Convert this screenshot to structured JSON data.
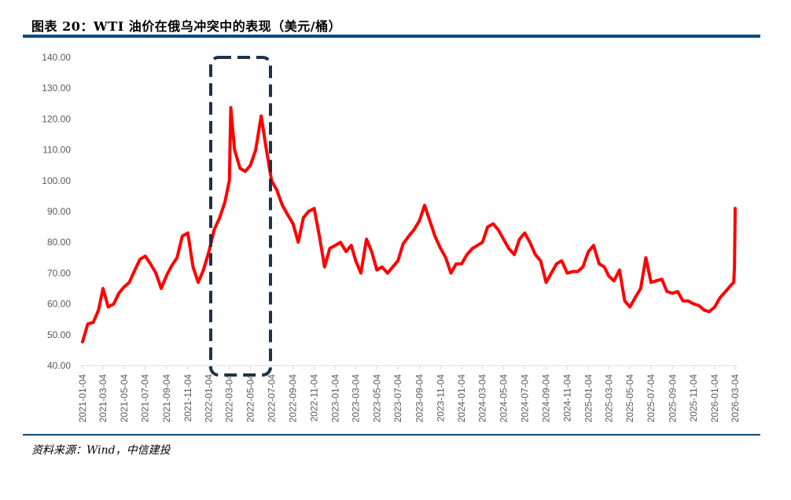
{
  "title": "图表 20：WTI 油价在俄乌冲突中的表现（美元/桶）",
  "source": "资料来源：Wind，中信建投",
  "colors": {
    "line": "#ff0000",
    "rule": "#0d4a7e",
    "highlight_box": "#1f3149",
    "axis": "#d9d9d9"
  },
  "chart_data": {
    "type": "line",
    "title": "",
    "xlabel": "",
    "ylabel": "",
    "ylim": [
      40,
      140
    ],
    "yticks": [
      "40.00",
      "50.00",
      "60.00",
      "70.00",
      "80.00",
      "90.00",
      "100.00",
      "110.00",
      "120.00",
      "130.00",
      "140.00"
    ],
    "xticks": [
      "2021-01-04",
      "2021-03-04",
      "2021-05-04",
      "2021-07-04",
      "2021-09-04",
      "2021-11-04",
      "2022-01-04",
      "2022-03-04",
      "2022-05-04",
      "2022-07-04",
      "2022-09-04",
      "2022-11-04",
      "2023-01-04",
      "2023-03-04",
      "2023-05-04",
      "2023-07-04",
      "2023-09-04",
      "2023-11-04",
      "2024-01-04",
      "2024-03-04",
      "2024-05-04",
      "2024-07-04",
      "2024-09-04",
      "2024-11-04",
      "2025-01-04",
      "2025-03-04",
      "2025-05-04",
      "2025-07-04",
      "2025-09-04",
      "2025-11-04",
      "2026-01-04",
      "2026-03-04"
    ],
    "grid": false,
    "highlight_range": [
      "2022-02-04",
      "2022-06-20"
    ],
    "series": [
      {
        "points": [
          [
            "2021-01-04",
            47.7
          ],
          [
            "2021-01-19",
            53.5
          ],
          [
            "2021-02-04",
            54
          ],
          [
            "2021-02-19",
            58
          ],
          [
            "2021-03-04",
            65
          ],
          [
            "2021-03-19",
            59
          ],
          [
            "2021-04-04",
            60
          ],
          [
            "2021-04-19",
            63.5
          ],
          [
            "2021-05-04",
            65.5
          ],
          [
            "2021-05-19",
            67
          ],
          [
            "2021-06-04",
            71
          ],
          [
            "2021-06-19",
            74.5
          ],
          [
            "2021-07-04",
            75.5
          ],
          [
            "2021-07-19",
            73
          ],
          [
            "2021-08-04",
            70
          ],
          [
            "2021-08-19",
            65
          ],
          [
            "2021-09-04",
            69.3
          ],
          [
            "2021-09-19",
            72.5
          ],
          [
            "2021-10-04",
            75
          ],
          [
            "2021-10-19",
            82
          ],
          [
            "2021-11-04",
            83
          ],
          [
            "2021-11-19",
            72
          ],
          [
            "2021-12-04",
            67
          ],
          [
            "2021-12-19",
            71
          ],
          [
            "2022-01-04",
            77
          ],
          [
            "2022-01-19",
            84
          ],
          [
            "2022-02-04",
            88
          ],
          [
            "2022-02-19",
            93
          ],
          [
            "2022-03-04",
            100
          ],
          [
            "2022-03-08",
            123.7
          ],
          [
            "2022-03-19",
            110
          ],
          [
            "2022-04-04",
            104
          ],
          [
            "2022-04-19",
            103
          ],
          [
            "2022-05-04",
            105
          ],
          [
            "2022-05-19",
            110
          ],
          [
            "2022-06-04",
            121
          ],
          [
            "2022-06-19",
            110
          ],
          [
            "2022-07-04",
            100
          ],
          [
            "2022-07-19",
            97
          ],
          [
            "2022-08-04",
            92
          ],
          [
            "2022-08-19",
            89
          ],
          [
            "2022-09-04",
            86
          ],
          [
            "2022-09-19",
            80
          ],
          [
            "2022-10-04",
            88
          ],
          [
            "2022-10-19",
            90
          ],
          [
            "2022-11-04",
            91
          ],
          [
            "2022-11-19",
            82
          ],
          [
            "2022-12-04",
            72
          ],
          [
            "2022-12-19",
            78
          ],
          [
            "2023-01-04",
            79
          ],
          [
            "2023-01-19",
            80
          ],
          [
            "2023-02-04",
            77
          ],
          [
            "2023-02-19",
            79
          ],
          [
            "2023-03-04",
            74
          ],
          [
            "2023-03-19",
            70
          ],
          [
            "2023-04-04",
            81
          ],
          [
            "2023-04-19",
            77
          ],
          [
            "2023-05-04",
            71
          ],
          [
            "2023-05-19",
            72
          ],
          [
            "2023-06-04",
            70
          ],
          [
            "2023-06-19",
            72
          ],
          [
            "2023-07-04",
            74
          ],
          [
            "2023-07-19",
            79.5
          ],
          [
            "2023-08-04",
            82
          ],
          [
            "2023-08-19",
            84
          ],
          [
            "2023-09-04",
            87
          ],
          [
            "2023-09-19",
            92
          ],
          [
            "2023-10-04",
            87
          ],
          [
            "2023-10-19",
            82
          ],
          [
            "2023-11-04",
            78
          ],
          [
            "2023-11-19",
            75
          ],
          [
            "2023-12-04",
            70
          ],
          [
            "2023-12-19",
            73
          ],
          [
            "2024-01-04",
            73
          ],
          [
            "2024-01-19",
            76
          ],
          [
            "2024-02-04",
            78
          ],
          [
            "2024-02-19",
            79
          ],
          [
            "2024-03-04",
            80
          ],
          [
            "2024-03-19",
            85
          ],
          [
            "2024-04-04",
            86
          ],
          [
            "2024-04-19",
            84
          ],
          [
            "2024-05-04",
            81
          ],
          [
            "2024-05-19",
            78
          ],
          [
            "2024-06-04",
            76
          ],
          [
            "2024-06-19",
            81
          ],
          [
            "2024-07-04",
            83
          ],
          [
            "2024-07-19",
            80
          ],
          [
            "2024-08-04",
            76
          ],
          [
            "2024-08-19",
            74
          ],
          [
            "2024-09-04",
            67
          ],
          [
            "2024-09-19",
            70
          ],
          [
            "2024-10-04",
            73
          ],
          [
            "2024-10-19",
            74
          ],
          [
            "2024-11-04",
            70
          ],
          [
            "2024-11-19",
            70.5
          ],
          [
            "2024-12-04",
            70.5
          ],
          [
            "2024-12-19",
            72
          ],
          [
            "2025-01-04",
            77
          ],
          [
            "2025-01-19",
            79
          ],
          [
            "2025-02-04",
            73
          ],
          [
            "2025-02-19",
            72
          ],
          [
            "2025-03-04",
            69
          ],
          [
            "2025-03-19",
            67.5
          ],
          [
            "2025-04-04",
            71
          ],
          [
            "2025-04-19",
            61
          ],
          [
            "2025-05-04",
            59
          ],
          [
            "2025-05-19",
            62
          ],
          [
            "2025-06-04",
            65
          ],
          [
            "2025-06-19",
            75
          ],
          [
            "2025-07-04",
            67
          ],
          [
            "2025-07-19",
            67.5
          ],
          [
            "2025-08-04",
            68
          ],
          [
            "2025-08-19",
            64
          ],
          [
            "2025-09-04",
            63.5
          ],
          [
            "2025-09-19",
            64
          ],
          [
            "2025-10-04",
            61
          ],
          [
            "2025-10-19",
            61
          ],
          [
            "2025-11-04",
            60
          ],
          [
            "2025-11-19",
            59.5
          ],
          [
            "2025-12-04",
            58
          ],
          [
            "2025-12-19",
            57.5
          ],
          [
            "2026-01-04",
            59
          ],
          [
            "2026-01-19",
            62
          ],
          [
            "2026-02-04",
            64
          ],
          [
            "2026-02-19",
            66
          ],
          [
            "2026-02-28",
            67
          ],
          [
            "2026-03-02",
            72
          ],
          [
            "2026-03-04",
            91
          ]
        ]
      }
    ]
  }
}
